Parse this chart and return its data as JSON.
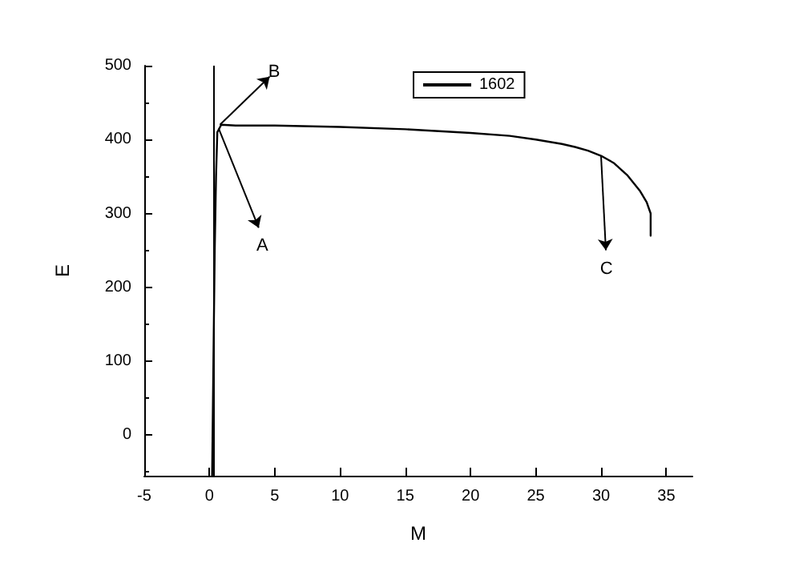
{
  "chart_data": {
    "type": "line",
    "xlabel": "M",
    "ylabel": "E",
    "xlim": [
      -5,
      37
    ],
    "xticks": [
      -5,
      0,
      5,
      10,
      15,
      20,
      25,
      30,
      35
    ],
    "ylim": [
      -55,
      500
    ],
    "yticks": [
      0,
      100,
      200,
      300,
      400,
      500
    ],
    "series": [
      {
        "name": "1602",
        "color": "#000000",
        "x": [
          0.2,
          0.3,
          0.4,
          0.5,
          0.6,
          0.9,
          2,
          5,
          10,
          15,
          20,
          23,
          25,
          27,
          28,
          29,
          30,
          31,
          32,
          33,
          33.5,
          33.8,
          33.8
        ],
        "values": [
          -55,
          100,
          250,
          350,
          410,
          420,
          419,
          419,
          417,
          414,
          409,
          405,
          400,
          394,
          390,
          385,
          378,
          368,
          352,
          330,
          315,
          300,
          270
        ]
      }
    ],
    "ref_lines": [
      {
        "axis": "x",
        "value": 0.3,
        "color": "#000000"
      }
    ],
    "annotations": [
      {
        "text": "A",
        "x": 0.7,
        "y": 415
      },
      {
        "text": "B",
        "x": 0.8,
        "y": 420
      },
      {
        "text": "C",
        "x": 30,
        "y": 378
      }
    ],
    "legend": "top",
    "grid": false,
    "marker": "none",
    "line_style": "solid"
  }
}
